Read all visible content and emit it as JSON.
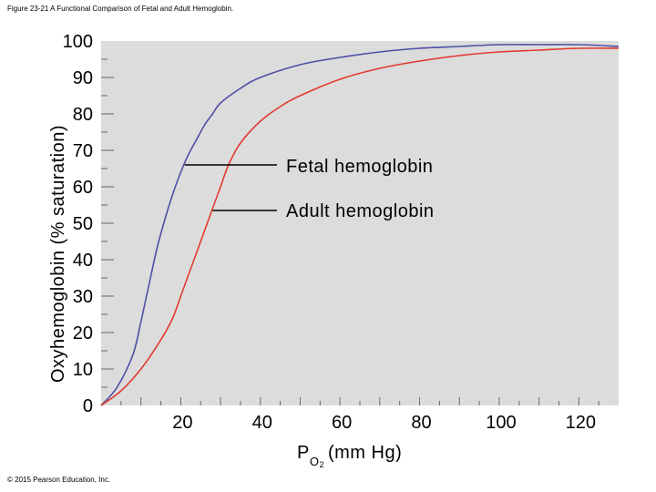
{
  "figure_caption": "Figure 23-21 A Functional Comparison of Fetal and Adult Hemoglobin.",
  "copyright": "© 2015 Pearson Education, Inc.",
  "colors": {
    "plot_background": "#dcdcdc",
    "fetal_line": "#4e4fa6",
    "adult_line": "#e23a30"
  },
  "chart_data": {
    "type": "line",
    "title": "",
    "xlabel": "P",
    "xlabel_subscript": "O",
    "xlabel_subscript2": "2",
    "xlabel_units": "(mm Hg)",
    "ylabel": "Oxyhemoglobin (% saturation)",
    "xlim": [
      0,
      130
    ],
    "ylim": [
      0,
      100
    ],
    "x_ticks": [
      20,
      40,
      60,
      80,
      100,
      120
    ],
    "y_ticks": [
      0,
      10,
      20,
      30,
      40,
      50,
      60,
      70,
      80,
      90,
      100
    ],
    "grid": false,
    "series": [
      {
        "name": "Fetal hemoglobin",
        "color": "#4e4fa6",
        "x": [
          0,
          4,
          8,
          10,
          12,
          14,
          16,
          18,
          20,
          22,
          24,
          26,
          28,
          30,
          35,
          40,
          50,
          60,
          70,
          80,
          90,
          100,
          110,
          120,
          130
        ],
        "y": [
          0,
          5,
          14,
          23,
          33,
          43,
          51,
          58,
          64,
          69,
          73,
          77,
          80,
          83,
          87,
          90,
          93.5,
          95.5,
          97,
          98,
          98.5,
          99,
          99,
          99,
          98.5
        ]
      },
      {
        "name": "Adult hemoglobin",
        "color": "#e23a30",
        "x": [
          0,
          5,
          10,
          15,
          18,
          20,
          22,
          24,
          26,
          28,
          30,
          32,
          35,
          40,
          45,
          50,
          60,
          70,
          80,
          90,
          100,
          110,
          120,
          130
        ],
        "y": [
          0,
          4,
          10,
          18,
          24,
          30,
          36,
          42,
          48,
          54,
          60,
          66,
          72,
          78,
          82,
          85,
          89.5,
          92.5,
          94.5,
          96,
          97,
          97.5,
          98,
          98
        ]
      }
    ],
    "annotations": [
      {
        "text": "Fetal hemoglobin",
        "x": 21,
        "y": 66
      },
      {
        "text": "Adult hemoglobin",
        "x": 28,
        "y": 53.5
      }
    ]
  }
}
